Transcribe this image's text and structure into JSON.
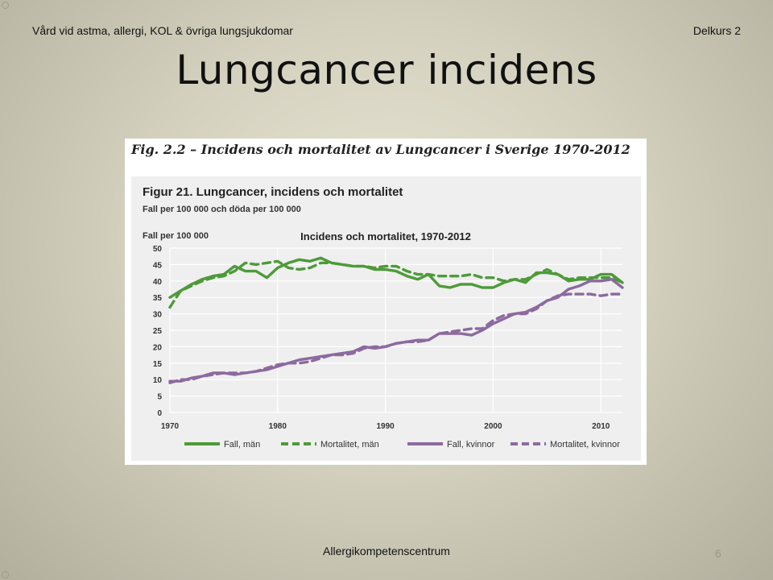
{
  "header": {
    "left": "Vård vid astma, allergi, KOL & övriga lungsjukdomar",
    "right": "Delkurs 2"
  },
  "slide": {
    "title": "Lungcancer incidens",
    "footer": "Allergikompetenscentrum",
    "number": "6"
  },
  "figure": {
    "caption": "Fig. 2.2 – Incidens och mortalitet av Lungcancer i Sverige 1970-2012",
    "panel_title": "Figur 21. Lungcancer, incidens och mortalitet",
    "panel_subtitle": "Fall per 100 000 och döda per 100 000"
  },
  "chart_data": {
    "type": "line",
    "title": "Incidens och mortalitet, 1970-2012",
    "ylabel": "Fall per 100 000",
    "xlabel": "",
    "xlim": [
      1970,
      2012
    ],
    "ylim": [
      0,
      50
    ],
    "x_ticks": [
      "1970",
      "1980",
      "1990",
      "2000",
      "2010"
    ],
    "x_tick_values": [
      1970,
      1980,
      1990,
      2000,
      2010
    ],
    "y_ticks": [
      "0",
      "5",
      "10",
      "15",
      "20",
      "25",
      "30",
      "35",
      "40",
      "45",
      "50"
    ],
    "y_tick_values": [
      0,
      5,
      10,
      15,
      20,
      25,
      30,
      35,
      40,
      45,
      50
    ],
    "grid": true,
    "legend_position": "bottom",
    "x": [
      1970,
      1971,
      1972,
      1973,
      1974,
      1975,
      1976,
      1977,
      1978,
      1979,
      1980,
      1981,
      1982,
      1983,
      1984,
      1985,
      1986,
      1987,
      1988,
      1989,
      1990,
      1991,
      1992,
      1993,
      1994,
      1995,
      1996,
      1997,
      1998,
      1999,
      2000,
      2001,
      2002,
      2003,
      2004,
      2005,
      2006,
      2007,
      2008,
      2009,
      2010,
      2011,
      2012
    ],
    "series": [
      {
        "name": "Fall, män",
        "color": "#4e9a3a",
        "style": "solid",
        "values": [
          35,
          37,
          39,
          40.5,
          41.5,
          42,
          44.5,
          43,
          43,
          41,
          44,
          45.5,
          46.5,
          46,
          47,
          45.5,
          45,
          44.5,
          44.5,
          43.5,
          43.5,
          43,
          41.5,
          40.5,
          42,
          38.5,
          38,
          39,
          39,
          38,
          38,
          39.5,
          40.5,
          39.5,
          42.5,
          42.5,
          42,
          40,
          40.5,
          40.5,
          42,
          42,
          39.5
        ]
      },
      {
        "name": "Mortalitet, män",
        "color": "#4e9a3a",
        "style": "dashed",
        "values": [
          32,
          37,
          38.5,
          40,
          41,
          41.5,
          43,
          45.5,
          45,
          45.5,
          46,
          44,
          43.5,
          44,
          45.5,
          45.5,
          45,
          44.5,
          44.5,
          44,
          44.5,
          44.5,
          43,
          42,
          42,
          41.5,
          41.5,
          41.5,
          42,
          41,
          41,
          40,
          40.5,
          40.5,
          42,
          43.5,
          42,
          40.5,
          41,
          41,
          41,
          41,
          39.5
        ]
      },
      {
        "name": "Fall, kvinnor",
        "color": "#8c6aa0",
        "style": "solid",
        "values": [
          9.5,
          9.5,
          10.5,
          11,
          12,
          12,
          11.5,
          12,
          12.5,
          13,
          14,
          15,
          16,
          16.5,
          17,
          17.5,
          18,
          18.5,
          20,
          19.5,
          20,
          21,
          21.5,
          22,
          22,
          24,
          24,
          24,
          23.5,
          25,
          27,
          28.5,
          30,
          30.5,
          32,
          34,
          35,
          37.5,
          38.5,
          40,
          40,
          40.5,
          38
        ]
      },
      {
        "name": "Mortalitet, kvinnor",
        "color": "#8c6aa0",
        "style": "dashed",
        "values": [
          9,
          10,
          10,
          11,
          11.5,
          12,
          12,
          12,
          12.5,
          13.5,
          14.5,
          15,
          15,
          15.5,
          16.5,
          17.5,
          17.5,
          18,
          19.5,
          20,
          20,
          21,
          21.5,
          21.5,
          22,
          24,
          24.5,
          25,
          25.5,
          25.5,
          28,
          29.5,
          30,
          30,
          31.5,
          34,
          35.5,
          36,
          36,
          36,
          35.5,
          36,
          36
        ]
      }
    ]
  }
}
